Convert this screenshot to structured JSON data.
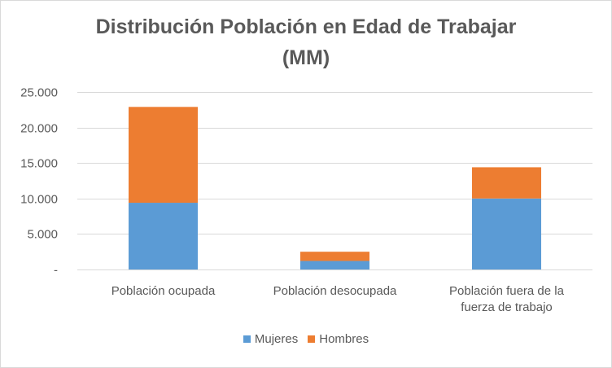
{
  "chart_data": {
    "type": "bar",
    "stacked": true,
    "title_lines": [
      "Distribución Población en Edad de Trabajar",
      "(MM)"
    ],
    "categories": [
      [
        "Población ocupada"
      ],
      [
        "Población desocupada"
      ],
      [
        "Población fuera de la",
        "fuerza de trabajo"
      ]
    ],
    "series": [
      {
        "name": "Mujeres",
        "color": "#5b9bd5",
        "values": [
          9400,
          1200,
          10000
        ]
      },
      {
        "name": "Hombres",
        "color": "#ed7d31",
        "values": [
          13500,
          1300,
          4400
        ]
      }
    ],
    "ylim": [
      0,
      25000
    ],
    "yticks": [
      0,
      5000,
      10000,
      15000,
      20000,
      25000
    ],
    "ytick_labels": [
      "-",
      "5.000",
      "10.000",
      "15.000",
      "20.000",
      "25.000"
    ],
    "grid": true,
    "legend_position": "bottom"
  }
}
